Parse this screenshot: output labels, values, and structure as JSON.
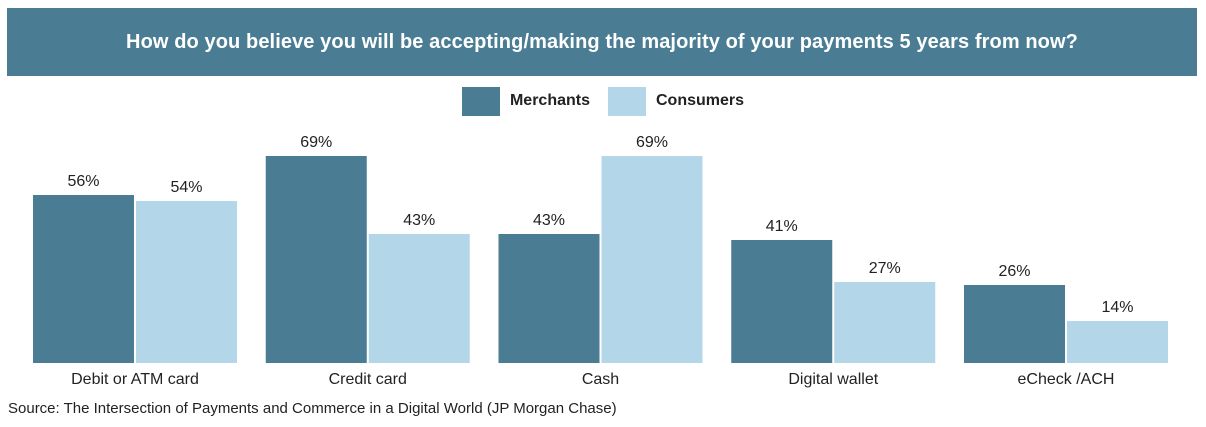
{
  "chart_data": {
    "type": "bar",
    "title": "How do you believe you will be accepting/making the majority of your payments 5 years from now?",
    "categories": [
      "Debit or ATM card",
      "Credit card",
      "Cash",
      "Digital wallet",
      "eCheck /ACH"
    ],
    "series": [
      {
        "name": "Merchants",
        "values": [
          56,
          69,
          43,
          41,
          26
        ],
        "color": "#4a7d93"
      },
      {
        "name": "Consumers",
        "values": [
          54,
          43,
          69,
          27,
          14
        ],
        "color": "#b3d7e8"
      }
    ],
    "value_suffix": "%",
    "ylim": [
      0,
      69
    ],
    "xlabel": "",
    "ylabel": "",
    "grid": false,
    "legend_position": "top-center"
  },
  "source": "Source: The Intersection of Payments and Commerce in a Digital World (JP Morgan Chase)"
}
